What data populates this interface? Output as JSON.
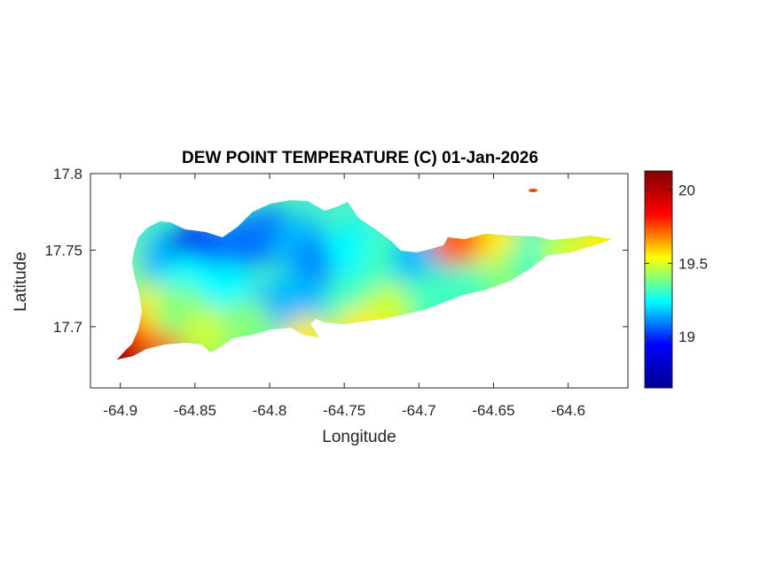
{
  "chart_data": {
    "type": "heatmap",
    "title": "DEW POINT TEMPERATURE (C) 01-Jan-2026",
    "xlabel": "Longitude",
    "ylabel": "Latitude",
    "xlim": [
      -64.92,
      -64.56
    ],
    "ylim": [
      17.66,
      17.8
    ],
    "xticks": [
      -64.9,
      -64.85,
      -64.8,
      -64.75,
      -64.7,
      -64.65,
      -64.6
    ],
    "xtick_labels": [
      "-64.9",
      "-64.85",
      "-64.8",
      "-64.75",
      "-64.7",
      "-64.65",
      "-64.6"
    ],
    "yticks": [
      17.7,
      17.75,
      17.8
    ],
    "ytick_labels": [
      "17.7",
      "17.75",
      "17.8"
    ],
    "colormap": "jet",
    "colorbar": {
      "range": [
        18.65,
        20.13
      ],
      "ticks": [
        19,
        19.5,
        20
      ],
      "tick_labels": [
        "19",
        "19.5",
        "20"
      ],
      "colors": [
        "#00008f",
        "#0000ff",
        "#00ffff",
        "#ffff00",
        "#ff0000",
        "#800000"
      ]
    },
    "field_points": [
      {
        "lon": -64.9,
        "lat": 17.679,
        "value": 20.1
      },
      {
        "lon": -64.885,
        "lat": 17.7,
        "value": 19.9
      },
      {
        "lon": -64.87,
        "lat": 17.695,
        "value": 19.8
      },
      {
        "lon": -64.875,
        "lat": 17.715,
        "value": 19.6
      },
      {
        "lon": -64.885,
        "lat": 17.74,
        "value": 19.4
      },
      {
        "lon": -64.87,
        "lat": 17.745,
        "value": 19.1
      },
      {
        "lon": -64.85,
        "lat": 17.75,
        "value": 18.8
      },
      {
        "lon": -64.84,
        "lat": 17.745,
        "value": 18.9
      },
      {
        "lon": -64.82,
        "lat": 17.755,
        "value": 19.0
      },
      {
        "lon": -64.8,
        "lat": 17.76,
        "value": 19.0
      },
      {
        "lon": -64.78,
        "lat": 17.755,
        "value": 19.1
      },
      {
        "lon": -64.765,
        "lat": 17.74,
        "value": 19.0
      },
      {
        "lon": -64.78,
        "lat": 17.72,
        "value": 19.1
      },
      {
        "lon": -64.8,
        "lat": 17.71,
        "value": 19.1
      },
      {
        "lon": -64.83,
        "lat": 17.725,
        "value": 19.2
      },
      {
        "lon": -64.855,
        "lat": 17.73,
        "value": 19.2
      },
      {
        "lon": -64.86,
        "lat": 17.71,
        "value": 19.4
      },
      {
        "lon": -64.84,
        "lat": 17.695,
        "value": 19.5
      },
      {
        "lon": -64.815,
        "lat": 17.7,
        "value": 19.4
      },
      {
        "lon": -64.775,
        "lat": 17.69,
        "value": 19.6
      },
      {
        "lon": -64.745,
        "lat": 17.72,
        "value": 19.3
      },
      {
        "lon": -64.745,
        "lat": 17.75,
        "value": 19.2
      },
      {
        "lon": -64.72,
        "lat": 17.745,
        "value": 19.3
      },
      {
        "lon": -64.7,
        "lat": 17.745,
        "value": 19.1
      },
      {
        "lon": -64.685,
        "lat": 17.74,
        "value": 19.1
      },
      {
        "lon": -64.72,
        "lat": 17.71,
        "value": 19.5
      },
      {
        "lon": -64.69,
        "lat": 17.72,
        "value": 19.3
      },
      {
        "lon": -64.66,
        "lat": 17.735,
        "value": 19.3
      },
      {
        "lon": -64.65,
        "lat": 17.755,
        "value": 19.6
      },
      {
        "lon": -64.64,
        "lat": 17.73,
        "value": 19.4
      },
      {
        "lon": -64.62,
        "lat": 17.745,
        "value": 19.3
      },
      {
        "lon": -64.6,
        "lat": 17.75,
        "value": 19.5
      },
      {
        "lon": -64.575,
        "lat": 17.755,
        "value": 19.6
      },
      {
        "lon": -64.675,
        "lat": 17.757,
        "value": 19.8
      },
      {
        "lon": -64.74,
        "lat": 17.695,
        "value": 19.6
      },
      {
        "lon": -64.62,
        "lat": 17.787,
        "value": 19.85
      }
    ]
  }
}
